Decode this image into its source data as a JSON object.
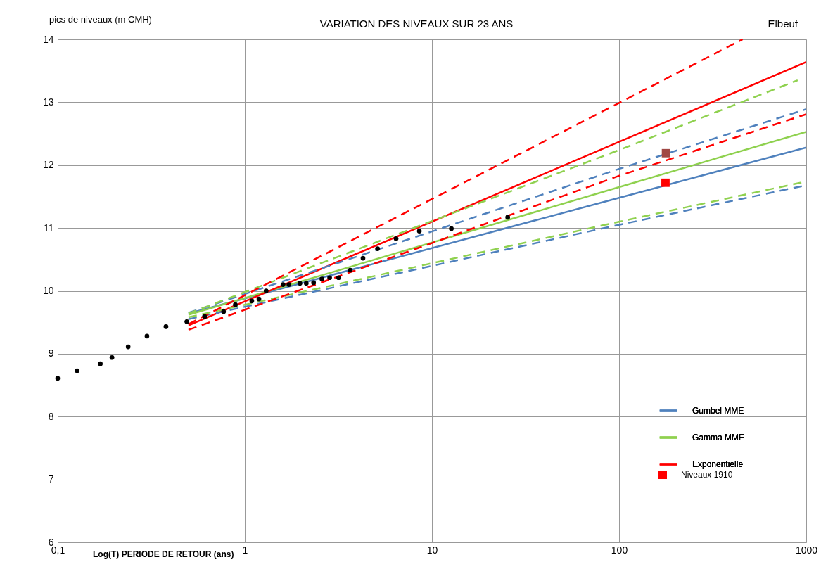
{
  "chart_data": {
    "type": "line",
    "title": "VARIATION DES NIVEAUX SUR 23 ANS",
    "ylabel": "pics de niveaux (m CMH)",
    "xlabel": "Log(T) PERIODE DE RETOUR (ans)",
    "annotations": [
      "Elbeuf"
    ],
    "log": "x",
    "grid": true,
    "legend": "bottom right",
    "xlim": [
      0.1,
      1000
    ],
    "xticks": [
      {
        "value": 0.1,
        "label": "0,1"
      },
      1,
      10,
      100,
      1000
    ],
    "ylim": [
      6,
      14
    ],
    "yticks": [
      6,
      7,
      8,
      9,
      10,
      11,
      12,
      13,
      14
    ],
    "series": [
      {
        "name": "Gumbel MME",
        "line_style": "solid",
        "color": "#4f81bd",
        "x": [
          0.5,
          100,
          1000
        ],
        "values": [
          9.64,
          11.48,
          12.28
        ]
      },
      {
        "name": "Gamma MME",
        "line_style": "solid",
        "color": "#8fd14f",
        "x": [
          0.5,
          100,
          1000
        ],
        "values": [
          9.62,
          11.65,
          12.53
        ]
      },
      {
        "name": "Exponentielle",
        "line_style": "solid",
        "color": "#ff0000",
        "x": [
          0.5,
          100,
          1000
        ],
        "values": [
          9.45,
          12.37,
          13.64
        ]
      },
      {
        "type": "line",
        "line_style": "dashed",
        "color": "#4f81bd",
        "x": [
          0.5,
          100,
          1000
        ],
        "values": [
          9.65,
          11.94,
          12.89
        ]
      },
      {
        "type": "line",
        "line_style": "dashed",
        "color": "#4f81bd",
        "x": [
          0.5,
          100,
          1000
        ],
        "values": [
          9.55,
          11.05,
          11.68
        ]
      },
      {
        "type": "line",
        "line_style": "dashed",
        "color": "#8fd14f",
        "x": [
          0.5,
          100,
          900
        ],
        "values": [
          9.64,
          12.24,
          13.35
        ]
      },
      {
        "type": "line",
        "line_style": "dashed",
        "color": "#8fd14f",
        "x": [
          0.5,
          100,
          1000
        ],
        "values": [
          9.58,
          11.1,
          11.74
        ]
      },
      {
        "type": "line",
        "line_style": "dashed",
        "color": "#ff0000",
        "x": [
          0.5,
          100,
          457
        ],
        "values": [
          9.47,
          12.99,
          14.0
        ]
      },
      {
        "type": "line",
        "line_style": "dashed",
        "color": "#ff0000",
        "x": [
          0.5,
          10,
          100,
          1000
        ],
        "values": [
          9.38,
          10.76,
          11.83,
          12.81
        ]
      },
      {
        "type": "scatter",
        "marker": "circle",
        "color": "#000000",
        "x": [
          0.1,
          0.127,
          0.169,
          0.195,
          0.238,
          0.3,
          0.379,
          0.49,
          0.61,
          0.77,
          0.89,
          1.09,
          1.19,
          1.3,
          1.6,
          1.72,
          1.97,
          2.13,
          2.33,
          2.58,
          2.84,
          3.17,
          3.66,
          4.28,
          5.12,
          6.43,
          8.56,
          12.7,
          25.4
        ],
        "values": [
          8.61,
          8.73,
          8.84,
          8.94,
          9.11,
          9.28,
          9.43,
          9.51,
          9.59,
          9.67,
          9.78,
          9.84,
          9.87,
          10.0,
          10.1,
          10.1,
          10.12,
          10.12,
          10.13,
          10.19,
          10.21,
          10.21,
          10.33,
          10.52,
          10.67,
          10.83,
          10.95,
          10.99,
          11.17
        ]
      },
      {
        "name": "Niveaux 1910",
        "type": "scatter",
        "marker": "square",
        "colors": [
          "#ff0000",
          "#a04744"
        ],
        "x": [
          177,
          178
        ],
        "values": [
          11.72,
          12.19
        ]
      }
    ]
  }
}
